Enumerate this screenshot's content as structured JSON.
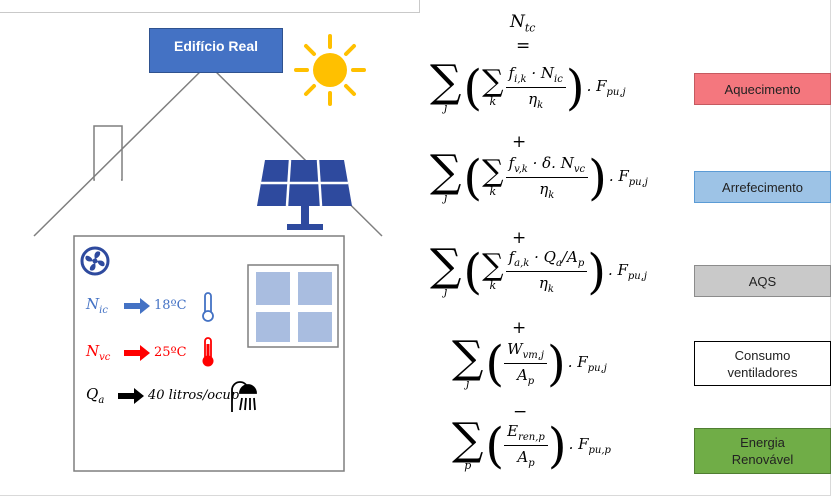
{
  "building_label": "Edifício Real",
  "left": {
    "nic_sym": "N",
    "nic_sub": "ic",
    "nic_val": "18ºC",
    "nvc_sym": "N",
    "nvc_sub": "vc",
    "nvc_val": "25ºC",
    "qa_sym": "Q",
    "qa_sub": "a",
    "qa_val": "40 litros/ocup"
  },
  "equation": {
    "lhs": "N",
    "lhs_sub": "tc",
    "equals": "=",
    "plus": "+",
    "minus": "−",
    "terms": [
      {
        "num": "f",
        "num_sub": "i,k",
        "num_rest": " · N",
        "num_rest_sub": "ic",
        "den": "η",
        "den_sub": "k",
        "sum_inner": "k",
        "sum_outer": "j",
        "factor": ". F",
        "factor_sub": "pu,j"
      },
      {
        "num": "f",
        "num_sub": "v,k",
        "num_rest": " · δ. N",
        "num_rest_sub": "vc",
        "den": "η",
        "den_sub": "k",
        "sum_inner": "k",
        "sum_outer": "j",
        "factor": ". F",
        "factor_sub": "pu,j"
      },
      {
        "num": "f",
        "num_sub": "a,k",
        "num_rest": " · Q",
        "num_rest_sub": "a",
        "num_tail": "/A",
        "num_tail_sub": "p",
        "den": "η",
        "den_sub": "k",
        "sum_inner": "k",
        "sum_outer": "j",
        "factor": ". F",
        "factor_sub": "pu,j"
      },
      {
        "num": "W",
        "num_sub": "vm,j",
        "den": "A",
        "den_sub": "p",
        "sum_outer": "j",
        "factor": ". F",
        "factor_sub": "pu,j"
      },
      {
        "num": "E",
        "num_sub": "ren,p",
        "den": "A",
        "den_sub": "p",
        "sum_outer": "p",
        "factor": ". F",
        "factor_sub": "pu,p"
      }
    ]
  },
  "labels": [
    {
      "text": "Aquecimento",
      "color": "#f4777e",
      "border": "#c55a60"
    },
    {
      "text": "Arrefecimento",
      "color": "#9dc3e6",
      "border": "#5b9bd5"
    },
    {
      "text": "AQS",
      "color": "#c9c9c9",
      "border": "#8c8c8c"
    },
    {
      "text_line1": "Consumo",
      "text_line2": "ventiladores",
      "color": "#ffffff",
      "border": "#000000"
    },
    {
      "text_line1": "Energia",
      "text_line2": "Renovável",
      "color": "#70ad47",
      "border": "#507e32"
    }
  ],
  "colors": {
    "blue": "#4472c4",
    "red": "#ff0000",
    "sun": "#ffc000",
    "window": "#a9bde0"
  }
}
